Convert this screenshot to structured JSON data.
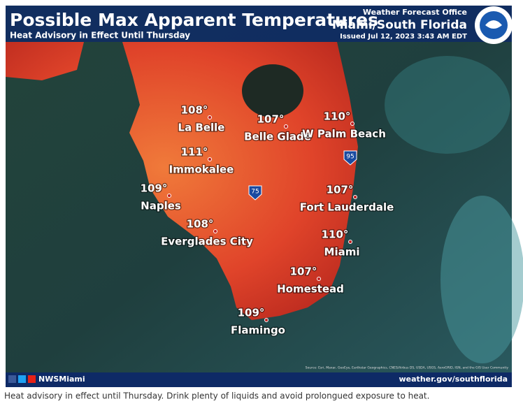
{
  "header": {
    "title": "Possible Max Apparent Temperatures",
    "subtitle": "Heat Advisory in Effect Until Thursday",
    "office": "Weather Forecast Office",
    "region": "Miami/South Florida",
    "issued": "Issued Jul 12, 2023 3:43 AM EDT"
  },
  "cities": [
    {
      "name": "La Belle",
      "temp": "108°"
    },
    {
      "name": "Belle Glade",
      "temp": "107°"
    },
    {
      "name": "W Palm Beach",
      "temp": "110°"
    },
    {
      "name": "Immokalee",
      "temp": "111°"
    },
    {
      "name": "Naples",
      "temp": "109°"
    },
    {
      "name": "Everglades City",
      "temp": "108°"
    },
    {
      "name": "Fort Lauderdale",
      "temp": "107°"
    },
    {
      "name": "Miami",
      "temp": "110°"
    },
    {
      "name": "Homestead",
      "temp": "107°"
    },
    {
      "name": "Flamingo",
      "temp": "109°"
    }
  ],
  "highways": [
    "75",
    "95"
  ],
  "credits": "Source: Esri, Maxar, GeoEye, Earthstar Geographics, CNES/Airbus DS, USDA, USGS, AeroGRID, IGN, and the GIS User Community",
  "footer": {
    "social": "NWSMiami",
    "website": "weather.gov/southflorida"
  },
  "caption": "Heat advisory in effect until Thursday. Drink plenty of liquids and avoid prolongued exposure to heat."
}
